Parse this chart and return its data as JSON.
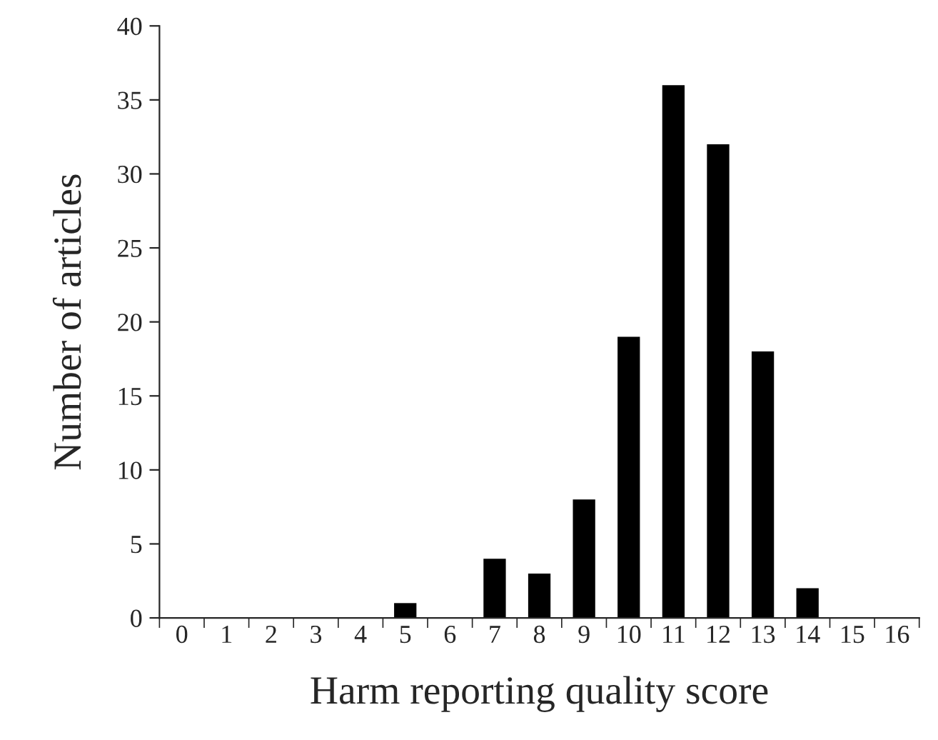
{
  "chart_data": {
    "type": "bar",
    "xlabel": "Harm reporting quality score",
    "ylabel": "Number of articles",
    "categories": [
      "0",
      "1",
      "2",
      "3",
      "4",
      "5",
      "6",
      "7",
      "8",
      "9",
      "10",
      "11",
      "12",
      "13",
      "14",
      "15",
      "16"
    ],
    "values": [
      0,
      0,
      0,
      0,
      0,
      1,
      0,
      4,
      3,
      8,
      19,
      36,
      32,
      18,
      2,
      0,
      0
    ],
    "color": "#000000",
    "ylim": [
      0,
      40
    ],
    "yticks": [
      0,
      5,
      10,
      15,
      20,
      25,
      30,
      35,
      40
    ],
    "grid": false,
    "legend": false
  }
}
